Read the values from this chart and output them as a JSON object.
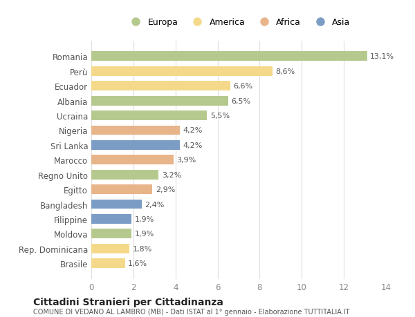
{
  "countries": [
    "Romania",
    "Perù",
    "Ecuador",
    "Albania",
    "Ucraina",
    "Nigeria",
    "Sri Lanka",
    "Marocco",
    "Regno Unito",
    "Egitto",
    "Bangladesh",
    "Filippine",
    "Moldova",
    "Rep. Dominicana",
    "Brasile"
  ],
  "values": [
    13.1,
    8.6,
    6.6,
    6.5,
    5.5,
    4.2,
    4.2,
    3.9,
    3.2,
    2.9,
    2.4,
    1.9,
    1.9,
    1.8,
    1.6
  ],
  "labels": [
    "13,1%",
    "8,6%",
    "6,6%",
    "6,5%",
    "5,5%",
    "4,2%",
    "4,2%",
    "3,9%",
    "3,2%",
    "2,9%",
    "2,4%",
    "1,9%",
    "1,9%",
    "1,8%",
    "1,6%"
  ],
  "continents": [
    "Europa",
    "America",
    "America",
    "Europa",
    "Europa",
    "Africa",
    "Asia",
    "Africa",
    "Europa",
    "Africa",
    "Asia",
    "Asia",
    "Europa",
    "America",
    "America"
  ],
  "colors": {
    "Europa": "#b5c98e",
    "America": "#f5d98b",
    "Africa": "#e8b48a",
    "Asia": "#7b9cc4"
  },
  "legend_order": [
    "Europa",
    "America",
    "Africa",
    "Asia"
  ],
  "title": "Cittadini Stranieri per Cittadinanza",
  "subtitle": "COMUNE DI VEDANO AL LAMBRO (MB) - Dati ISTAT al 1° gennaio - Elaborazione TUTTITALIA.IT",
  "xlim": [
    0,
    14
  ],
  "xticks": [
    0,
    2,
    4,
    6,
    8,
    10,
    12,
    14
  ],
  "background_color": "#ffffff",
  "grid_color": "#dddddd"
}
